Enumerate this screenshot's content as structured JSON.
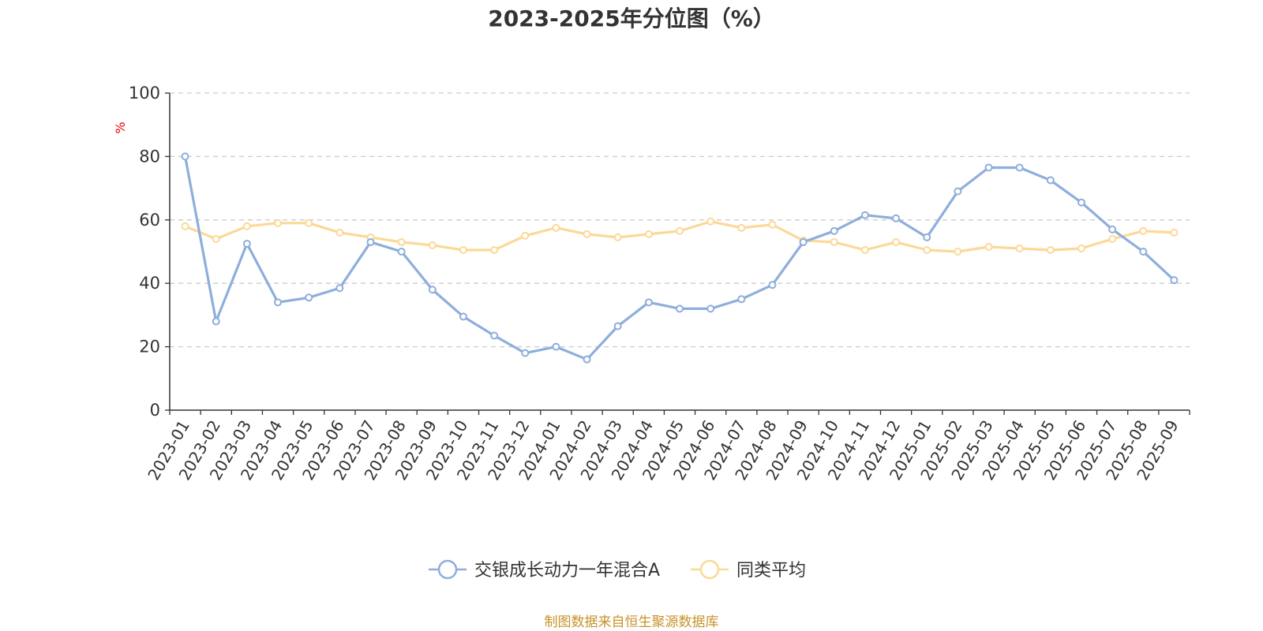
{
  "chart_data": {
    "type": "line",
    "title": "2023-2025年分位图（%）",
    "ylabel": "%",
    "xlabel": "",
    "ylim": [
      0,
      100
    ],
    "yticks": [
      0,
      20,
      40,
      60,
      80,
      100
    ],
    "grid": true,
    "legend_position": "bottom-center",
    "categories": [
      "2023-01",
      "2023-02",
      "2023-03",
      "2023-04",
      "2023-05",
      "2023-06",
      "2023-07",
      "2023-08",
      "2023-09",
      "2023-10",
      "2023-11",
      "2023-12",
      "2024-01",
      "2024-02",
      "2024-03",
      "2024-04",
      "2024-05",
      "2024-06",
      "2024-07",
      "2024-08",
      "2024-09",
      "2024-10",
      "2024-11",
      "2024-12",
      "2025-01",
      "2025-02",
      "2025-03",
      "2025-04",
      "2025-05",
      "2025-06",
      "2025-07",
      "2025-08",
      "2025-09"
    ],
    "series": [
      {
        "name": "交银成长动力一年混合A",
        "color": "#8eaedb",
        "values": [
          80,
          28,
          52.5,
          34,
          35.5,
          38.5,
          53,
          50,
          38,
          29.5,
          23.5,
          18,
          20,
          16,
          26.5,
          34,
          32,
          32,
          35,
          39.5,
          53,
          56.5,
          61.5,
          60.5,
          54.5,
          69,
          76.5,
          76.5,
          72.5,
          65.5,
          57,
          50,
          41
        ]
      },
      {
        "name": "同类平均",
        "color": "#fbd997",
        "values": [
          58,
          54,
          58,
          59,
          59,
          56,
          54.5,
          53,
          52,
          50.5,
          50.5,
          55,
          57.5,
          55.5,
          54.5,
          55.5,
          56.5,
          59.5,
          57.5,
          58.5,
          53.5,
          53,
          50.5,
          53,
          50.5,
          50,
          51.5,
          51,
          50.5,
          51,
          54,
          56.5,
          56
        ]
      }
    ]
  },
  "source_note": "制图数据来自恒生聚源数据库"
}
